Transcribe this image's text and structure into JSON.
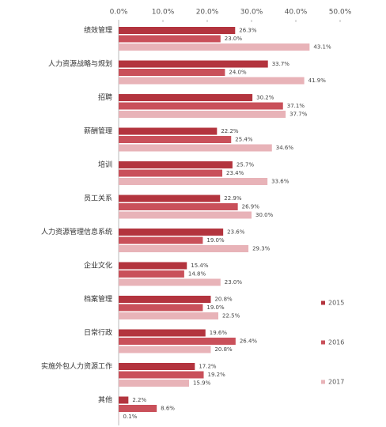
{
  "chart_data": {
    "type": "hbar",
    "categories": [
      "绩效管理",
      "人力资源战略与规划",
      "招聘",
      "薪酬管理",
      "培训",
      "员工关系",
      "人力资源管理信息系统",
      "企业文化",
      "档案管理",
      "日常行政",
      "实施外包人力资源工作",
      "其他"
    ],
    "series": [
      {
        "name": "2015",
        "color": "#b3343e",
        "values": [
          26.3,
          33.7,
          30.2,
          22.2,
          25.7,
          22.9,
          23.6,
          15.4,
          20.8,
          19.6,
          17.2,
          2.2
        ],
        "value_labels": [
          "26.3%",
          "33.7%",
          "30.2%",
          "22.2%",
          "25.7%",
          "22.9%",
          "23.6%",
          "15.4%",
          "20.8%",
          "19.6%",
          "17.2%",
          "2.2%"
        ]
      },
      {
        "name": "2016",
        "color": "#c9505a",
        "values": [
          23.0,
          24.0,
          37.1,
          25.4,
          23.4,
          26.9,
          19.0,
          14.8,
          19.0,
          26.4,
          19.2,
          8.6
        ],
        "value_labels": [
          "23.0%",
          "24.0%",
          "37.1%",
          "25.4%",
          "23.4%",
          "26.9%",
          "19.0%",
          "14.8%",
          "19.0%",
          "26.4%",
          "19.2%",
          "8.6%"
        ]
      },
      {
        "name": "2017",
        "color": "#e8b3b8",
        "values": [
          43.1,
          41.9,
          37.7,
          34.6,
          33.6,
          30.0,
          29.3,
          23.0,
          22.5,
          20.8,
          15.9,
          0.1
        ],
        "value_labels": [
          "43.1%",
          "41.9%",
          "37.7%",
          "34.6%",
          "33.6%",
          "30.0%",
          "29.3%",
          "23.0%",
          "22.5%",
          "20.8%",
          "15.9%",
          "0.1%"
        ]
      }
    ],
    "xlim": [
      0,
      50
    ],
    "xticks": [
      {
        "value": 0,
        "label": "0.0%"
      },
      {
        "value": 10,
        "label": "10.0%"
      },
      {
        "value": 20,
        "label": "20.0%"
      },
      {
        "value": 30,
        "label": "30.0%"
      },
      {
        "value": 40,
        "label": "40.0%"
      },
      {
        "value": 50,
        "label": "50.0%"
      }
    ],
    "legend": "right"
  }
}
